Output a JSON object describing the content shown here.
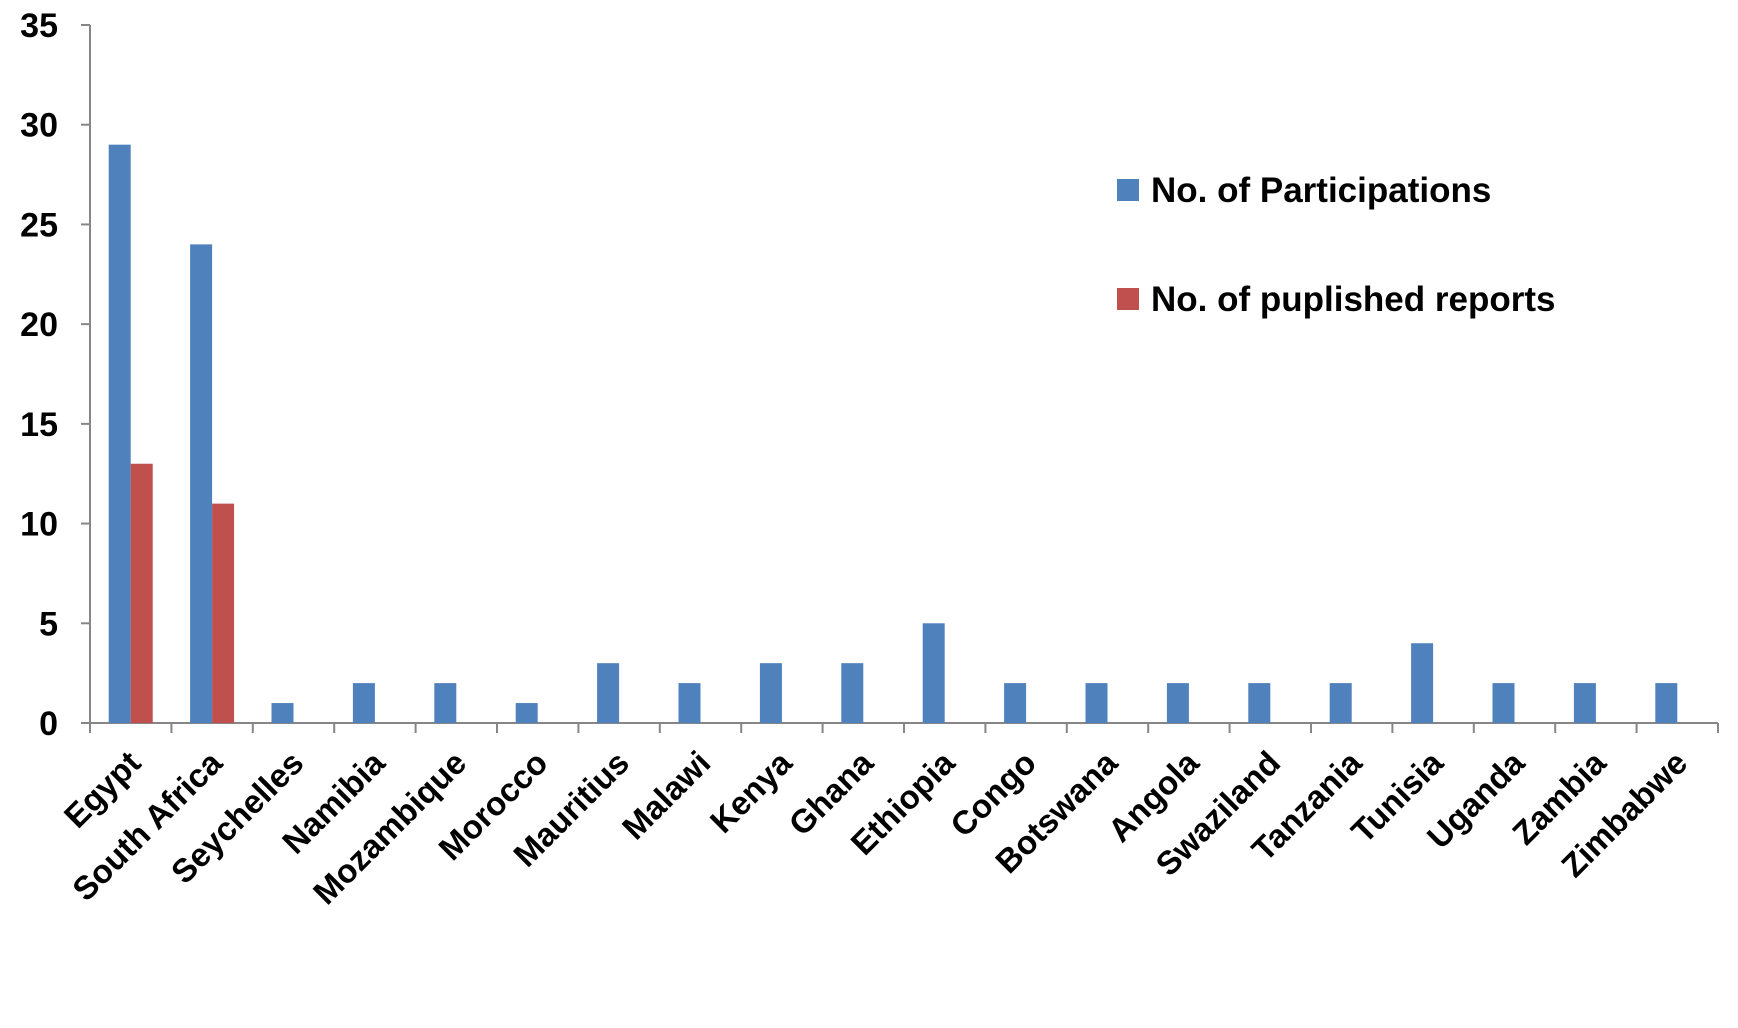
{
  "chart_data": {
    "type": "bar",
    "title": "",
    "xlabel": "",
    "ylabel": "",
    "ylim": [
      0,
      35
    ],
    "yticks": [
      0,
      5,
      10,
      15,
      20,
      25,
      30,
      35
    ],
    "grid": false,
    "legend_position": "top-right",
    "categories": [
      "Egypt",
      "South Africa",
      "Seychelles",
      "Namibia",
      "Mozambique",
      "Morocco",
      "Mauritius",
      "Malawi",
      "Kenya",
      "Ghana",
      "Ethiopia",
      "Congo",
      "Botswana",
      "Angola",
      "Swaziland",
      "Tanzania",
      "Tunisia",
      "Uganda",
      "Zambia",
      "Zimbabwe"
    ],
    "series": [
      {
        "name": "No. of Participations",
        "color": "#4F81BD",
        "values": [
          29,
          24,
          1,
          2,
          2,
          1,
          3,
          2,
          3,
          3,
          5,
          2,
          2,
          2,
          2,
          2,
          4,
          2,
          2,
          2
        ]
      },
      {
        "name": "No. of puplished reports",
        "color": "#C0504D",
        "values": [
          13,
          11,
          0,
          0,
          0,
          0,
          0,
          0,
          0,
          0,
          0,
          0,
          0,
          0,
          0,
          0,
          0,
          0,
          0,
          0
        ]
      }
    ]
  }
}
